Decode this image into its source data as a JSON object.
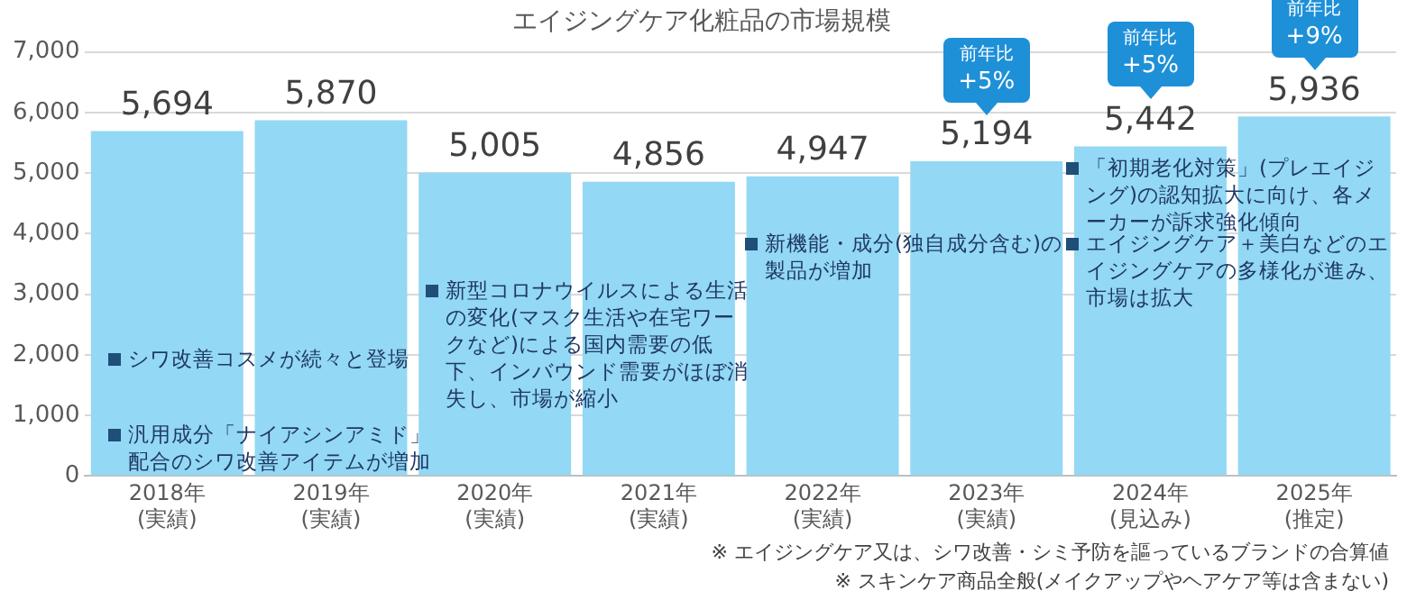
{
  "chart_data": {
    "type": "bar",
    "title": "エイジングケア化粧品の市場規模",
    "categories": [
      "2018年\n(実績)",
      "2019年\n(実績)",
      "2020年\n(実績)",
      "2021年\n(実績)",
      "2022年\n(実績)",
      "2023年\n(実績)",
      "2024年\n(見込み)",
      "2025年\n(推定)"
    ],
    "values": [
      5694,
      5870,
      5005,
      4856,
      4947,
      5194,
      5442,
      5936
    ],
    "value_labels": [
      "5,694",
      "5,870",
      "5,005",
      "4,856",
      "4,947",
      "5,194",
      "5,442",
      "5,936"
    ],
    "color": "#93d8f4",
    "ylim": [
      0,
      7000
    ],
    "yticks": [
      0,
      {
        "value": 1000,
        "label": "1,000"
      },
      {
        "value": 2000,
        "label": "2,000"
      },
      {
        "value": 3000,
        "label": "3,000"
      },
      {
        "value": 4000,
        "label": "4,000"
      },
      {
        "value": 5000,
        "label": "5,000"
      },
      {
        "value": 6000,
        "label": "6,000"
      },
      {
        "value": 7000,
        "label": "7,000"
      }
    ],
    "grid": "y",
    "annotations": [
      "シワ改善コスメが続々と登場",
      "汎用成分「ナイアシンアミド」配合のシワ改善アイテムが増加",
      "新型コロナウイルスによる生活の変化(マスク生活や在宅ワークなど)による国内需要の低下、インバウンド需要がほぼ消失し、市場が縮小",
      "新機能・成分(独自成分含む)の製品が増加",
      "「初期老化対策」(プレエイジング)の認知拡大に向け、各メーカーが訴求強化傾向",
      "エイジングケア＋美白などのエイジングケアの多様化が進み、市場は拡大",
      "※ エイジングケア又は、シワ改善・シミ予防を謳っているブランドの合算値",
      "※ スキンケア商品全般(メイクアップやヘアケア等は含まない)",
      {
        "text": "前年比\n+5%",
        "x": "2023年\n(実績)",
        "y": 5194
      },
      {
        "text": "前年比\n+5%",
        "x": "2024年\n(見込み)",
        "y": 5442
      },
      {
        "text": "前年比\n+9%",
        "x": "2025年\n(推定)",
        "y": 5936
      }
    ]
  }
}
